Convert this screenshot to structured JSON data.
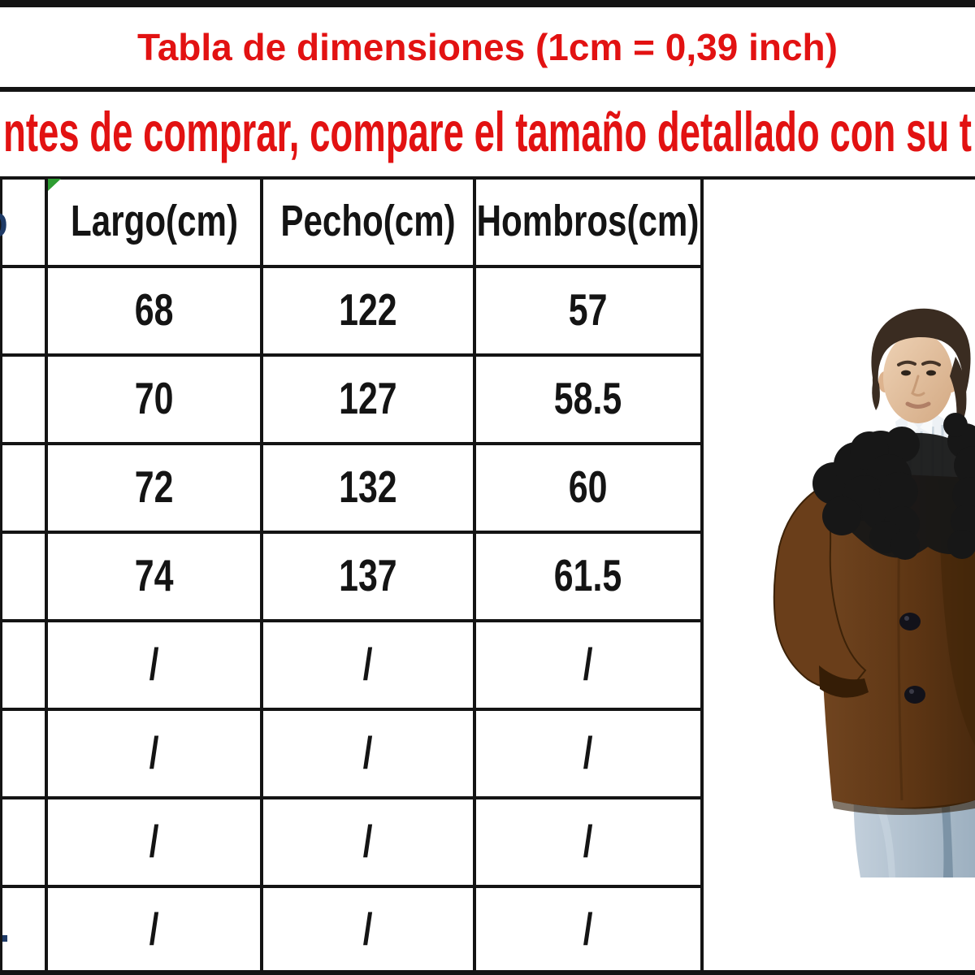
{
  "page": {
    "title": "Tabla de dimensiones (1cm = 0,39 inch)",
    "subtitle_visible": "ntes de comprar, compare el tamaño detallado con su t"
  },
  "table": {
    "columns": [
      "Largo(cm)",
      "Pecho(cm)",
      "Hombros(cm)"
    ],
    "rows": [
      [
        "68",
        "122",
        "57"
      ],
      [
        "70",
        "127",
        "58.5"
      ],
      [
        "72",
        "132",
        "60"
      ],
      [
        "74",
        "137",
        "61.5"
      ],
      [
        "/",
        "/",
        "/"
      ],
      [
        "/",
        "/",
        "/"
      ],
      [
        "/",
        "/",
        "/"
      ],
      [
        "/",
        "/",
        "/"
      ]
    ],
    "size_column_fragments": {
      "header": "o",
      "last_row": "."
    }
  },
  "figure": {
    "alt": "man wearing brown coat with black fur collar and jeans"
  },
  "colors": {
    "accent_red": "#e21212",
    "grid_black": "#141414",
    "fragment_navy": "#1e3a66",
    "marker_green": "#2e9d32",
    "coat_brown": "#6a3e1a",
    "coat_shadow": "#3f2408",
    "fur_black": "#171717",
    "jeans_blue": "#b3c3d1",
    "shirt_white": "#edf1f5",
    "skin": "#e4c3a2",
    "hair_brown": "#3a2c21"
  }
}
